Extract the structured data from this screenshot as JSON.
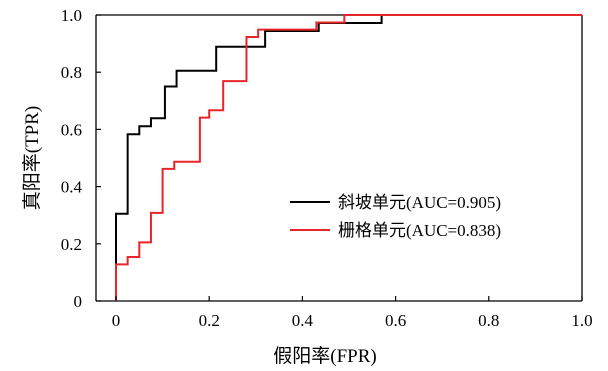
{
  "chart_data": {
    "type": "line",
    "xlabel": "假阳率(FPR)",
    "ylabel": "真阳率(TPR)",
    "xlim": [
      0,
      1.0
    ],
    "ylim": [
      0,
      1.0
    ],
    "grid": false,
    "legend_position": "center-right",
    "x_ticks": [
      "0",
      "0.2",
      "0.4",
      "0.6",
      "0.8",
      "1.0"
    ],
    "y_ticks": [
      "0",
      "0.2",
      "0.4",
      "0.6",
      "0.8",
      "1.0"
    ],
    "series": [
      {
        "name": "斜坡单元(AUC=0.905)",
        "color": "#000000",
        "points": [
          [
            0,
            0
          ],
          [
            0,
            0.305
          ],
          [
            0.025,
            0.305
          ],
          [
            0.025,
            0.583
          ],
          [
            0.05,
            0.583
          ],
          [
            0.05,
            0.611
          ],
          [
            0.075,
            0.611
          ],
          [
            0.075,
            0.639
          ],
          [
            0.105,
            0.639
          ],
          [
            0.105,
            0.75
          ],
          [
            0.13,
            0.75
          ],
          [
            0.13,
            0.805
          ],
          [
            0.215,
            0.805
          ],
          [
            0.215,
            0.889
          ],
          [
            0.32,
            0.889
          ],
          [
            0.32,
            0.944
          ],
          [
            0.435,
            0.944
          ],
          [
            0.435,
            0.972
          ],
          [
            0.57,
            0.972
          ],
          [
            0.57,
            1.0
          ],
          [
            1.0,
            1.0
          ]
        ]
      },
      {
        "name": "栅格单元(AUC=0.838)",
        "color": "#e8262a",
        "points": [
          [
            0,
            0
          ],
          [
            0,
            0.128
          ],
          [
            0.025,
            0.128
          ],
          [
            0.025,
            0.154
          ],
          [
            0.05,
            0.154
          ],
          [
            0.05,
            0.205
          ],
          [
            0.075,
            0.205
          ],
          [
            0.075,
            0.308
          ],
          [
            0.1,
            0.308
          ],
          [
            0.1,
            0.462
          ],
          [
            0.125,
            0.462
          ],
          [
            0.125,
            0.487
          ],
          [
            0.18,
            0.487
          ],
          [
            0.18,
            0.641
          ],
          [
            0.2,
            0.641
          ],
          [
            0.2,
            0.667
          ],
          [
            0.23,
            0.667
          ],
          [
            0.23,
            0.769
          ],
          [
            0.28,
            0.769
          ],
          [
            0.28,
            0.923
          ],
          [
            0.305,
            0.923
          ],
          [
            0.305,
            0.949
          ],
          [
            0.43,
            0.949
          ],
          [
            0.43,
            0.974
          ],
          [
            0.49,
            0.974
          ],
          [
            0.49,
            1.0
          ],
          [
            1.0,
            1.0
          ]
        ]
      }
    ]
  }
}
